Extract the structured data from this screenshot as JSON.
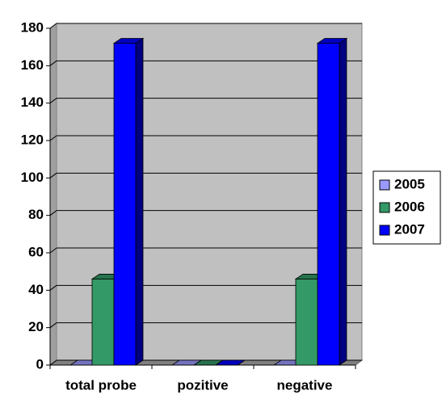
{
  "chart_data": {
    "type": "bar3d",
    "categories": [
      "total probe",
      "pozitive",
      "negative"
    ],
    "series": [
      {
        "name": "2005",
        "color": "#9999ff",
        "values": [
          0,
          0,
          0
        ]
      },
      {
        "name": "2006",
        "color": "#339966",
        "values": [
          46,
          0,
          46
        ]
      },
      {
        "name": "2007",
        "color": "#0000ff",
        "values": [
          172,
          0,
          172
        ]
      }
    ],
    "ylim": [
      0,
      180
    ],
    "yticks": [
      0,
      20,
      40,
      60,
      80,
      100,
      120,
      140,
      160,
      180
    ],
    "grid": true,
    "legend": "right"
  }
}
